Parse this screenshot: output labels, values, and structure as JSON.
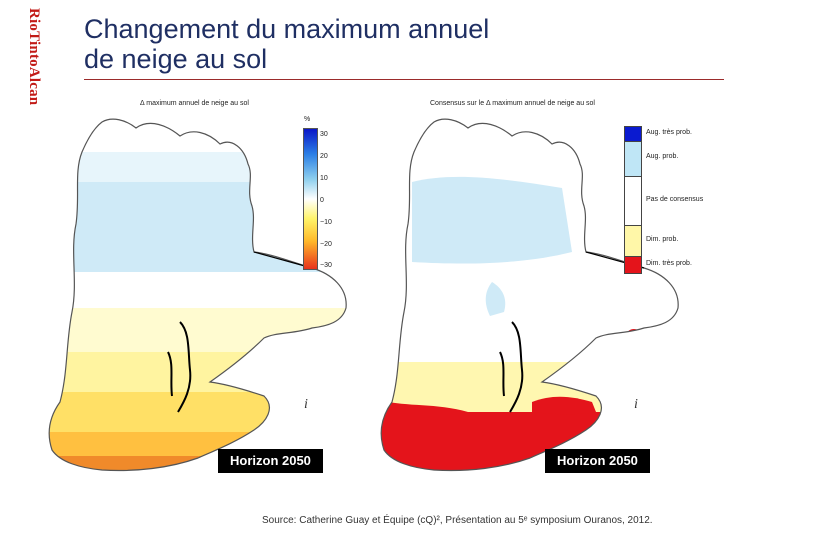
{
  "brand": {
    "logo_text": "RioTintoAlcan"
  },
  "title": {
    "line1": "Changement du maximum annuel",
    "line2": "de neige au sol"
  },
  "left_panel": {
    "title": "Δ maximum annuel de neige au sol",
    "colorbar_unit": "%",
    "colorbar_ticks": [
      "30",
      "20",
      "10",
      "0",
      "−10",
      "−20",
      "−30"
    ],
    "horizon": "Horizon 2050"
  },
  "right_panel": {
    "title": "Consensus sur le Δ maximum annuel de neige au sol",
    "legend": [
      {
        "label": "Aug. très prob.",
        "color": "#0a1ad0"
      },
      {
        "label": "Aug. prob.",
        "color": "#bfe6f6"
      },
      {
        "label": "Pas de consensus",
        "color": "#ffffff"
      },
      {
        "label": "Dim. prob.",
        "color": "#fff7a8"
      },
      {
        "label": "Dim. très prob.",
        "color": "#e4141b"
      }
    ],
    "horizon": "Horizon 2050"
  },
  "source": {
    "text": "Source: Catherine Guay et Équipe (cQ)², Présentation au 5ᵉ symposium Ouranos, 2012."
  },
  "colors": {
    "title": "#1f2f63",
    "brand": "#c21b17",
    "rule": "#9b2b2b",
    "increase": "#cfeaf7",
    "decrease_light": "#fff7b0",
    "decrease_mid": "#ffe066",
    "decrease_strong": "#f08a2a",
    "very_probable_decrease": "#e4141b"
  }
}
